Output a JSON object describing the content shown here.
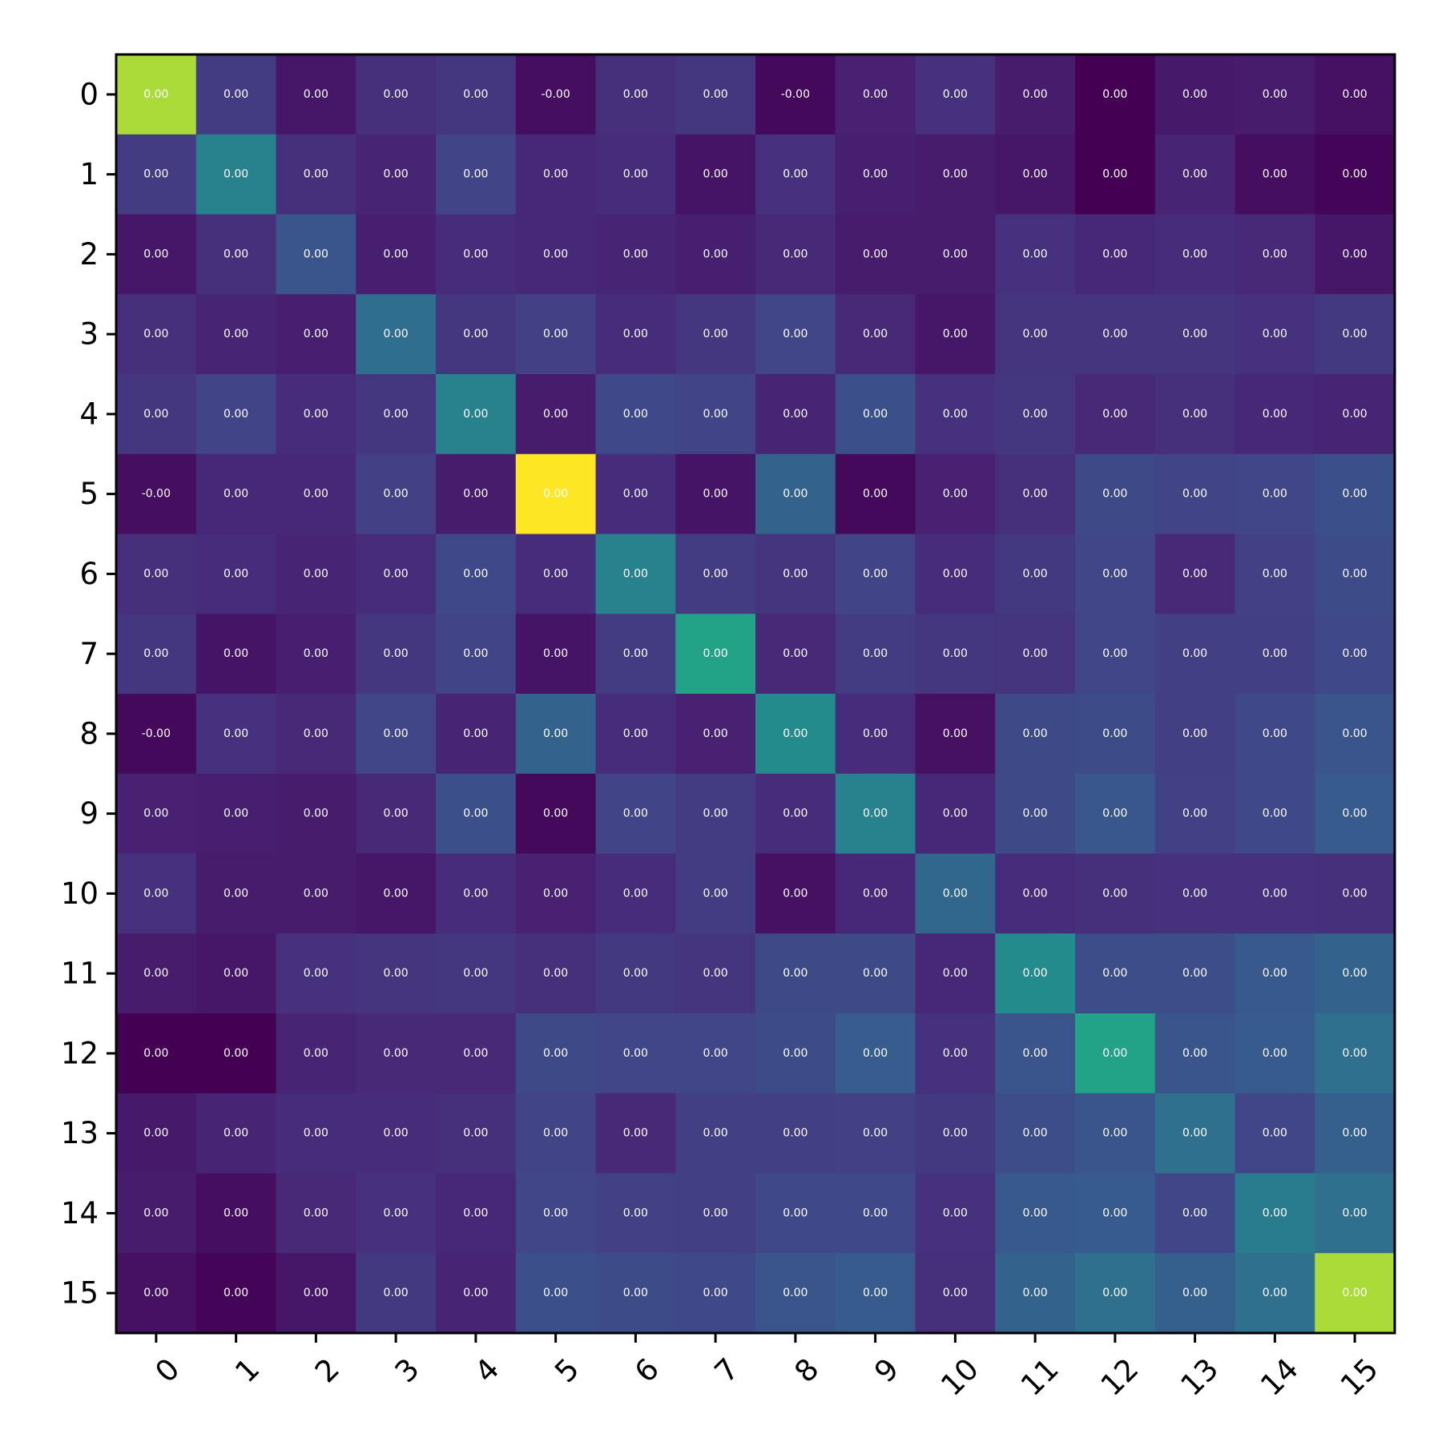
{
  "chart_data": {
    "type": "heatmap",
    "title": "",
    "xlabel": "",
    "ylabel": "",
    "colormap": "viridis",
    "x_tick_labels": [
      "0",
      "1",
      "2",
      "3",
      "4",
      "5",
      "6",
      "7",
      "8",
      "9",
      "10",
      "11",
      "12",
      "13",
      "14",
      "15"
    ],
    "y_tick_labels": [
      "0",
      "1",
      "2",
      "3",
      "4",
      "5",
      "6",
      "7",
      "8",
      "9",
      "10",
      "11",
      "12",
      "13",
      "14",
      "15"
    ],
    "cell_labels": [
      [
        "0.00",
        "0.00",
        "0.00",
        "0.00",
        "0.00",
        "-0.00",
        "0.00",
        "0.00",
        "-0.00",
        "0.00",
        "0.00",
        "0.00",
        "0.00",
        "0.00",
        "0.00",
        "0.00"
      ],
      [
        "0.00",
        "0.00",
        "0.00",
        "0.00",
        "0.00",
        "0.00",
        "0.00",
        "0.00",
        "0.00",
        "0.00",
        "0.00",
        "0.00",
        "0.00",
        "0.00",
        "0.00",
        "0.00"
      ],
      [
        "0.00",
        "0.00",
        "0.00",
        "0.00",
        "0.00",
        "0.00",
        "0.00",
        "0.00",
        "0.00",
        "0.00",
        "0.00",
        "0.00",
        "0.00",
        "0.00",
        "0.00",
        "0.00"
      ],
      [
        "0.00",
        "0.00",
        "0.00",
        "0.00",
        "0.00",
        "0.00",
        "0.00",
        "0.00",
        "0.00",
        "0.00",
        "0.00",
        "0.00",
        "0.00",
        "0.00",
        "0.00",
        "0.00"
      ],
      [
        "0.00",
        "0.00",
        "0.00",
        "0.00",
        "0.00",
        "0.00",
        "0.00",
        "0.00",
        "0.00",
        "0.00",
        "0.00",
        "0.00",
        "0.00",
        "0.00",
        "0.00",
        "0.00"
      ],
      [
        "-0.00",
        "0.00",
        "0.00",
        "0.00",
        "0.00",
        "0.00",
        "0.00",
        "0.00",
        "0.00",
        "0.00",
        "0.00",
        "0.00",
        "0.00",
        "0.00",
        "0.00",
        "0.00"
      ],
      [
        "0.00",
        "0.00",
        "0.00",
        "0.00",
        "0.00",
        "0.00",
        "0.00",
        "0.00",
        "0.00",
        "0.00",
        "0.00",
        "0.00",
        "0.00",
        "0.00",
        "0.00",
        "0.00"
      ],
      [
        "0.00",
        "0.00",
        "0.00",
        "0.00",
        "0.00",
        "0.00",
        "0.00",
        "0.00",
        "0.00",
        "0.00",
        "0.00",
        "0.00",
        "0.00",
        "0.00",
        "0.00",
        "0.00"
      ],
      [
        "-0.00",
        "0.00",
        "0.00",
        "0.00",
        "0.00",
        "0.00",
        "0.00",
        "0.00",
        "0.00",
        "0.00",
        "0.00",
        "0.00",
        "0.00",
        "0.00",
        "0.00",
        "0.00"
      ],
      [
        "0.00",
        "0.00",
        "0.00",
        "0.00",
        "0.00",
        "0.00",
        "0.00",
        "0.00",
        "0.00",
        "0.00",
        "0.00",
        "0.00",
        "0.00",
        "0.00",
        "0.00",
        "0.00"
      ],
      [
        "0.00",
        "0.00",
        "0.00",
        "0.00",
        "0.00",
        "0.00",
        "0.00",
        "0.00",
        "0.00",
        "0.00",
        "0.00",
        "0.00",
        "0.00",
        "0.00",
        "0.00",
        "0.00"
      ],
      [
        "0.00",
        "0.00",
        "0.00",
        "0.00",
        "0.00",
        "0.00",
        "0.00",
        "0.00",
        "0.00",
        "0.00",
        "0.00",
        "0.00",
        "0.00",
        "0.00",
        "0.00",
        "0.00"
      ],
      [
        "0.00",
        "0.00",
        "0.00",
        "0.00",
        "0.00",
        "0.00",
        "0.00",
        "0.00",
        "0.00",
        "0.00",
        "0.00",
        "0.00",
        "0.00",
        "0.00",
        "0.00",
        "0.00"
      ],
      [
        "0.00",
        "0.00",
        "0.00",
        "0.00",
        "0.00",
        "0.00",
        "0.00",
        "0.00",
        "0.00",
        "0.00",
        "0.00",
        "0.00",
        "0.00",
        "0.00",
        "0.00",
        "0.00"
      ],
      [
        "0.00",
        "0.00",
        "0.00",
        "0.00",
        "0.00",
        "0.00",
        "0.00",
        "0.00",
        "0.00",
        "0.00",
        "0.00",
        "0.00",
        "0.00",
        "0.00",
        "0.00",
        "0.00"
      ],
      [
        "0.00",
        "0.00",
        "0.00",
        "0.00",
        "0.00",
        "0.00",
        "0.00",
        "0.00",
        "0.00",
        "0.00",
        "0.00",
        "0.00",
        "0.00",
        "0.00",
        "0.00",
        "0.00"
      ]
    ],
    "relative_intensity": [
      [
        0.95,
        0.22,
        0.08,
        0.17,
        0.2,
        0.05,
        0.17,
        0.2,
        0.03,
        0.12,
        0.18,
        0.1,
        0.0,
        0.09,
        0.1,
        0.06
      ],
      [
        0.22,
        0.55,
        0.17,
        0.13,
        0.25,
        0.14,
        0.16,
        0.07,
        0.18,
        0.11,
        0.1,
        0.08,
        0.0,
        0.13,
        0.05,
        0.01
      ],
      [
        0.08,
        0.17,
        0.33,
        0.11,
        0.16,
        0.14,
        0.13,
        0.11,
        0.15,
        0.1,
        0.1,
        0.18,
        0.14,
        0.16,
        0.15,
        0.08
      ],
      [
        0.17,
        0.13,
        0.11,
        0.45,
        0.2,
        0.24,
        0.16,
        0.2,
        0.26,
        0.15,
        0.08,
        0.19,
        0.19,
        0.19,
        0.18,
        0.21
      ],
      [
        0.2,
        0.25,
        0.16,
        0.2,
        0.55,
        0.1,
        0.27,
        0.25,
        0.13,
        0.31,
        0.18,
        0.2,
        0.15,
        0.17,
        0.14,
        0.13
      ],
      [
        0.05,
        0.14,
        0.14,
        0.24,
        0.1,
        1.0,
        0.16,
        0.07,
        0.4,
        0.03,
        0.12,
        0.17,
        0.28,
        0.25,
        0.26,
        0.31
      ],
      [
        0.17,
        0.16,
        0.13,
        0.16,
        0.27,
        0.16,
        0.55,
        0.22,
        0.19,
        0.25,
        0.16,
        0.21,
        0.26,
        0.15,
        0.24,
        0.29
      ],
      [
        0.2,
        0.07,
        0.11,
        0.2,
        0.25,
        0.07,
        0.22,
        0.72,
        0.15,
        0.22,
        0.2,
        0.19,
        0.26,
        0.23,
        0.23,
        0.27
      ],
      [
        0.03,
        0.18,
        0.15,
        0.26,
        0.13,
        0.4,
        0.16,
        0.12,
        0.6,
        0.16,
        0.06,
        0.28,
        0.29,
        0.23,
        0.27,
        0.33
      ],
      [
        0.12,
        0.11,
        0.1,
        0.15,
        0.31,
        0.03,
        0.25,
        0.22,
        0.16,
        0.55,
        0.14,
        0.28,
        0.34,
        0.24,
        0.27,
        0.36
      ],
      [
        0.18,
        0.1,
        0.1,
        0.08,
        0.16,
        0.12,
        0.16,
        0.22,
        0.06,
        0.14,
        0.42,
        0.16,
        0.17,
        0.18,
        0.18,
        0.17
      ],
      [
        0.1,
        0.08,
        0.18,
        0.19,
        0.2,
        0.17,
        0.21,
        0.19,
        0.28,
        0.28,
        0.14,
        0.6,
        0.3,
        0.3,
        0.35,
        0.4
      ],
      [
        0.0,
        0.0,
        0.13,
        0.15,
        0.15,
        0.28,
        0.26,
        0.26,
        0.29,
        0.37,
        0.18,
        0.33,
        0.72,
        0.33,
        0.36,
        0.46
      ],
      [
        0.09,
        0.13,
        0.16,
        0.16,
        0.17,
        0.25,
        0.15,
        0.23,
        0.23,
        0.24,
        0.21,
        0.3,
        0.33,
        0.46,
        0.26,
        0.38
      ],
      [
        0.1,
        0.05,
        0.15,
        0.18,
        0.14,
        0.26,
        0.24,
        0.23,
        0.27,
        0.27,
        0.18,
        0.35,
        0.36,
        0.26,
        0.52,
        0.46
      ],
      [
        0.06,
        0.01,
        0.08,
        0.21,
        0.13,
        0.31,
        0.29,
        0.27,
        0.33,
        0.36,
        0.17,
        0.4,
        0.46,
        0.38,
        0.46,
        0.95
      ]
    ]
  }
}
